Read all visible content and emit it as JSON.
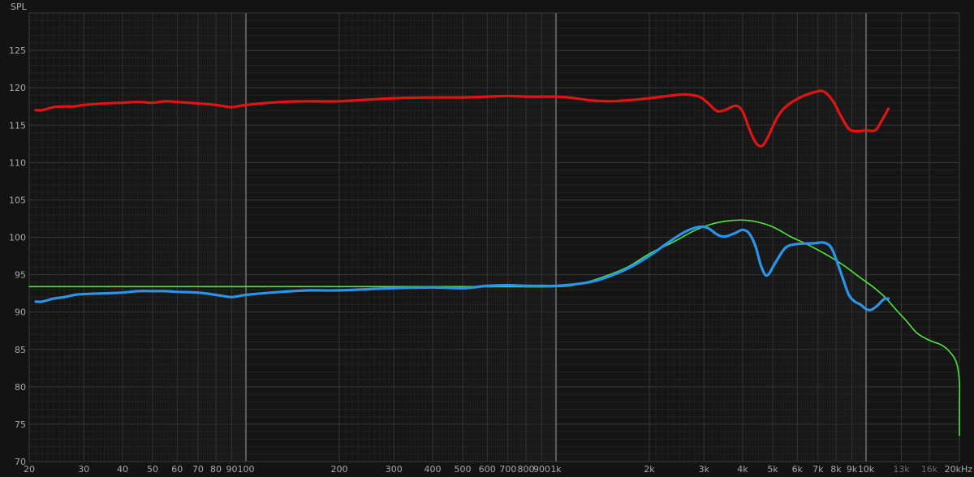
{
  "chart_data": {
    "type": "line",
    "xscale": "log",
    "xlim": [
      20,
      20000
    ],
    "ylim": [
      70,
      130
    ],
    "ylabel": "SPL",
    "grid": true,
    "background": "#131313",
    "x_ticks": [
      {
        "v": 20,
        "label": "20"
      },
      {
        "v": 30,
        "label": "30"
      },
      {
        "v": 40,
        "label": "40"
      },
      {
        "v": 50,
        "label": "50"
      },
      {
        "v": 60,
        "label": "60"
      },
      {
        "v": 70,
        "label": "70"
      },
      {
        "v": 80,
        "label": "80"
      },
      {
        "v": 90,
        "label": "90"
      },
      {
        "v": 100,
        "label": "100"
      },
      {
        "v": 200,
        "label": "200"
      },
      {
        "v": 300,
        "label": "300"
      },
      {
        "v": 400,
        "label": "400"
      },
      {
        "v": 500,
        "label": "500"
      },
      {
        "v": 600,
        "label": "600"
      },
      {
        "v": 700,
        "label": "700"
      },
      {
        "v": 800,
        "label": "800"
      },
      {
        "v": 900,
        "label": "900"
      },
      {
        "v": 1000,
        "label": "1k"
      },
      {
        "v": 2000,
        "label": "2k"
      },
      {
        "v": 3000,
        "label": "3k"
      },
      {
        "v": 4000,
        "label": "4k"
      },
      {
        "v": 5000,
        "label": "5k"
      },
      {
        "v": 6000,
        "label": "6k"
      },
      {
        "v": 7000,
        "label": "7k"
      },
      {
        "v": 8000,
        "label": "8k"
      },
      {
        "v": 9000,
        "label": "9k"
      },
      {
        "v": 10000,
        "label": "10k"
      },
      {
        "v": 13000,
        "label": "13k",
        "dim": true
      },
      {
        "v": 16000,
        "label": "16k",
        "dim": true
      },
      {
        "v": 20000,
        "label": "20kHz"
      }
    ],
    "y_ticks": [
      70,
      75,
      80,
      85,
      90,
      95,
      100,
      105,
      110,
      115,
      120,
      125
    ],
    "series": [
      {
        "color": "#e01414",
        "width": 3.2,
        "points": [
          [
            21,
            117.0
          ],
          [
            22,
            117.0
          ],
          [
            24,
            117.4
          ],
          [
            26,
            117.5
          ],
          [
            28,
            117.5
          ],
          [
            30,
            117.7
          ],
          [
            35,
            117.9
          ],
          [
            40,
            118.0
          ],
          [
            45,
            118.1
          ],
          [
            50,
            118.0
          ],
          [
            55,
            118.2
          ],
          [
            60,
            118.1
          ],
          [
            70,
            117.9
          ],
          [
            80,
            117.7
          ],
          [
            90,
            117.4
          ],
          [
            100,
            117.7
          ],
          [
            130,
            118.1
          ],
          [
            160,
            118.2
          ],
          [
            200,
            118.2
          ],
          [
            300,
            118.6
          ],
          [
            400,
            118.7
          ],
          [
            500,
            118.7
          ],
          [
            600,
            118.8
          ],
          [
            700,
            118.9
          ],
          [
            800,
            118.8
          ],
          [
            900,
            118.8
          ],
          [
            1000,
            118.8
          ],
          [
            1100,
            118.7
          ],
          [
            1300,
            118.3
          ],
          [
            1500,
            118.2
          ],
          [
            1800,
            118.4
          ],
          [
            2000,
            118.6
          ],
          [
            2300,
            118.9
          ],
          [
            2600,
            119.1
          ],
          [
            2900,
            118.8
          ],
          [
            3100,
            117.9
          ],
          [
            3300,
            116.9
          ],
          [
            3500,
            117.0
          ],
          [
            3800,
            117.6
          ],
          [
            4000,
            116.8
          ],
          [
            4200,
            114.5
          ],
          [
            4400,
            112.7
          ],
          [
            4600,
            112.2
          ],
          [
            4800,
            113.2
          ],
          [
            5200,
            116.2
          ],
          [
            5600,
            117.7
          ],
          [
            6200,
            118.8
          ],
          [
            6800,
            119.4
          ],
          [
            7300,
            119.5
          ],
          [
            7800,
            118.3
          ],
          [
            8300,
            116.2
          ],
          [
            8800,
            114.5
          ],
          [
            9300,
            114.2
          ],
          [
            10000,
            114.3
          ],
          [
            10700,
            114.3
          ],
          [
            11200,
            115.5
          ],
          [
            11800,
            117.2
          ]
        ]
      },
      {
        "color": "#2b94e8",
        "width": 3.2,
        "points": [
          [
            21,
            91.4
          ],
          [
            22,
            91.4
          ],
          [
            24,
            91.8
          ],
          [
            26,
            92.0
          ],
          [
            28,
            92.3
          ],
          [
            30,
            92.4
          ],
          [
            35,
            92.5
          ],
          [
            40,
            92.6
          ],
          [
            45,
            92.8
          ],
          [
            50,
            92.8
          ],
          [
            55,
            92.8
          ],
          [
            60,
            92.7
          ],
          [
            70,
            92.6
          ],
          [
            80,
            92.3
          ],
          [
            90,
            92.0
          ],
          [
            100,
            92.3
          ],
          [
            130,
            92.7
          ],
          [
            160,
            92.9
          ],
          [
            200,
            92.9
          ],
          [
            300,
            93.2
          ],
          [
            400,
            93.3
          ],
          [
            500,
            93.2
          ],
          [
            600,
            93.5
          ],
          [
            700,
            93.6
          ],
          [
            800,
            93.5
          ],
          [
            900,
            93.5
          ],
          [
            1000,
            93.5
          ],
          [
            1200,
            93.8
          ],
          [
            1400,
            94.4
          ],
          [
            1700,
            95.8
          ],
          [
            2000,
            97.5
          ],
          [
            2300,
            99.3
          ],
          [
            2600,
            100.7
          ],
          [
            2900,
            101.4
          ],
          [
            3100,
            101.2
          ],
          [
            3300,
            100.4
          ],
          [
            3500,
            100.1
          ],
          [
            3800,
            100.6
          ],
          [
            4000,
            101.0
          ],
          [
            4200,
            100.5
          ],
          [
            4400,
            98.8
          ],
          [
            4600,
            96.0
          ],
          [
            4800,
            94.9
          ],
          [
            5100,
            96.6
          ],
          [
            5500,
            98.6
          ],
          [
            6000,
            99.1
          ],
          [
            6800,
            99.2
          ],
          [
            7300,
            99.3
          ],
          [
            7700,
            98.7
          ],
          [
            8000,
            97.1
          ],
          [
            8400,
            94.6
          ],
          [
            8800,
            92.3
          ],
          [
            9200,
            91.4
          ],
          [
            9600,
            91.0
          ],
          [
            10000,
            90.4
          ],
          [
            10400,
            90.3
          ],
          [
            10900,
            90.9
          ],
          [
            11400,
            91.7
          ],
          [
            11800,
            91.8
          ]
        ]
      },
      {
        "color": "#4fe53a",
        "width": 1.6,
        "points": [
          [
            20,
            93.4
          ],
          [
            100,
            93.4
          ],
          [
            500,
            93.4
          ],
          [
            1000,
            93.4
          ],
          [
            1200,
            93.8
          ],
          [
            1400,
            94.6
          ],
          [
            1700,
            96.0
          ],
          [
            2000,
            97.8
          ],
          [
            2400,
            99.4
          ],
          [
            2800,
            100.9
          ],
          [
            3200,
            101.8
          ],
          [
            3600,
            102.2
          ],
          [
            4000,
            102.3
          ],
          [
            4400,
            102.1
          ],
          [
            5000,
            101.4
          ],
          [
            5700,
            100.1
          ],
          [
            6500,
            99.0
          ],
          [
            7500,
            97.6
          ],
          [
            8500,
            96.2
          ],
          [
            9500,
            94.7
          ],
          [
            10500,
            93.4
          ],
          [
            11500,
            92.0
          ],
          [
            12500,
            90.3
          ],
          [
            13500,
            88.8
          ],
          [
            14500,
            87.3
          ],
          [
            15500,
            86.5
          ],
          [
            16500,
            86.0
          ],
          [
            17500,
            85.6
          ],
          [
            18500,
            84.8
          ],
          [
            19500,
            83.4
          ],
          [
            20500,
            80.8
          ],
          [
            21200,
            77.5
          ],
          [
            21800,
            75.0
          ],
          [
            22100,
            73.5
          ]
        ]
      }
    ]
  }
}
